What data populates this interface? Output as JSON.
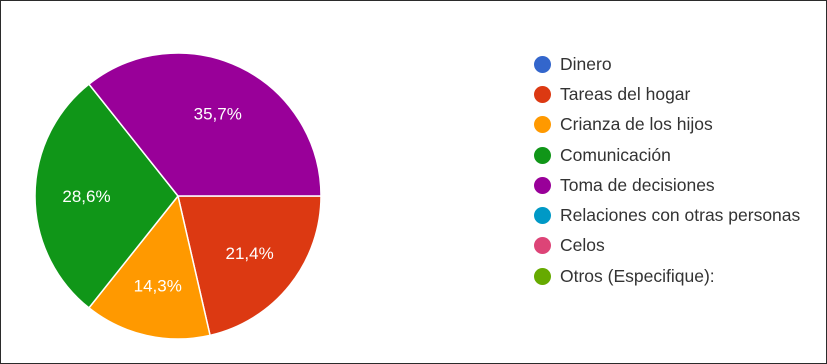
{
  "chart_data": {
    "type": "pie",
    "title": "",
    "slices": [
      {
        "label": "Dinero",
        "value": 0,
        "color": "#3366cc",
        "pct_label": ""
      },
      {
        "label": "Tareas del hogar",
        "value": 21.4,
        "color": "#dc3912",
        "pct_label": "21,4%"
      },
      {
        "label": "Crianza de los hijos",
        "value": 14.3,
        "color": "#ff9900",
        "pct_label": "14,3%"
      },
      {
        "label": "Comunicación",
        "value": 28.6,
        "color": "#109618",
        "pct_label": "28,6%"
      },
      {
        "label": "Toma de decisiones",
        "value": 35.7,
        "color": "#990099",
        "pct_label": "35,7%"
      },
      {
        "label": "Relaciones con otras personas",
        "value": 0,
        "color": "#0099c6",
        "pct_label": ""
      },
      {
        "label": "Celos",
        "value": 0,
        "color": "#dd4477",
        "pct_label": ""
      },
      {
        "label": "Otros (Especifique):",
        "value": 0,
        "color": "#66aa00",
        "pct_label": ""
      }
    ],
    "legend_position": "right"
  }
}
